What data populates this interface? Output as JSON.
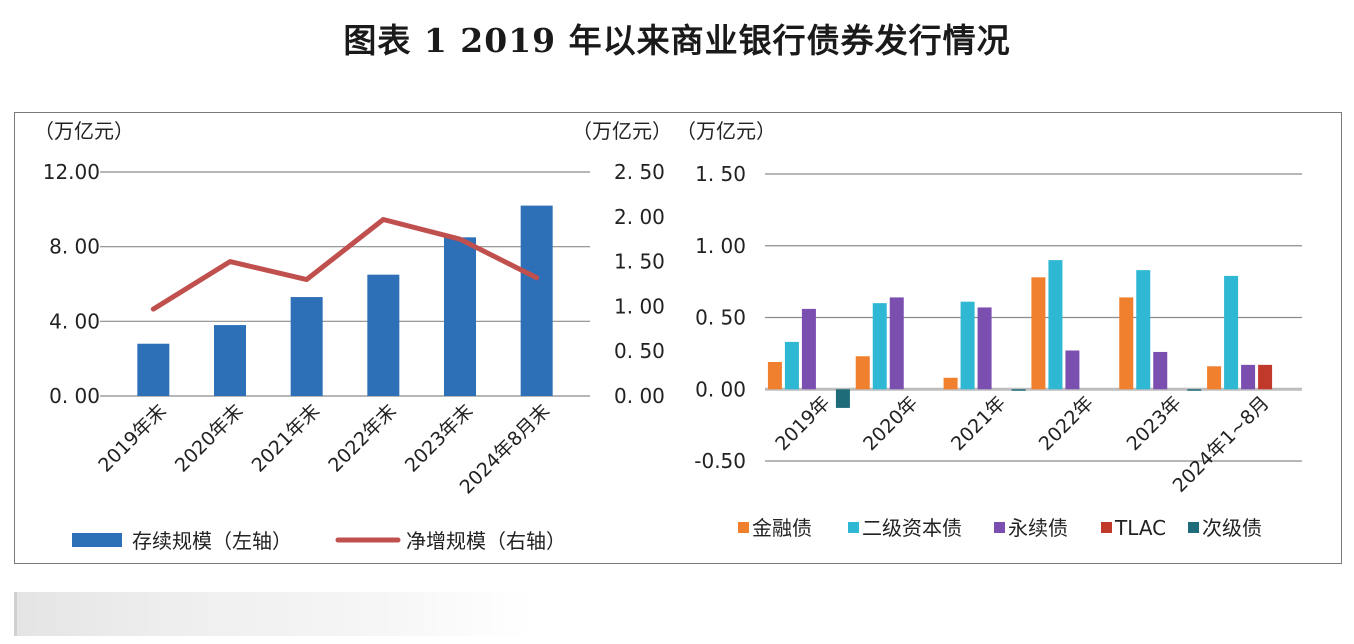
{
  "title": "图表 1  2019 年以来商业银行债券发行情况",
  "chart_data": [
    {
      "type": "bar+line",
      "title": "",
      "left_unit": "（万亿元）",
      "right_unit": "（万亿元）",
      "categories": [
        "2019年末",
        "2020年末",
        "2021年末",
        "2022年末",
        "2023年末",
        "2024年8月末"
      ],
      "left_ticks": [
        "0. 00",
        "4. 00",
        "8. 00",
        "12.00"
      ],
      "right_ticks": [
        "0. 00",
        "0. 50",
        "1. 00",
        "1. 50",
        "2. 00",
        "2. 50"
      ],
      "ylim_left": [
        0,
        12
      ],
      "ylim_right": [
        0,
        2.5
      ],
      "grid": true,
      "legend_position": "bottom",
      "series": [
        {
          "name": "存续规模（左轴）",
          "type": "bar",
          "axis": "left",
          "color": "#2e70b8",
          "values": [
            2.8,
            3.8,
            5.3,
            6.5,
            8.5,
            10.2
          ]
        },
        {
          "name": "净增规模（右轴）",
          "type": "line",
          "axis": "right",
          "color": "#c0504d",
          "values": [
            0.97,
            1.5,
            1.3,
            1.97,
            1.75,
            1.32
          ]
        }
      ]
    },
    {
      "type": "bar",
      "title": "",
      "unit": "（万亿元）",
      "categories": [
        "2019年",
        "2020年",
        "2021年",
        "2022年",
        "2023年",
        "2024年1~8月"
      ],
      "y_ticks": [
        "-0.50",
        "0. 00",
        "0. 50",
        "1. 00",
        "1. 50"
      ],
      "ylim": [
        -0.5,
        1.5
      ],
      "grid": true,
      "legend_position": "bottom",
      "series": [
        {
          "name": "金融债",
          "color": "#f07f2e",
          "values": [
            0.19,
            0.23,
            0.08,
            0.78,
            0.64,
            0.16
          ]
        },
        {
          "name": "二级资本债",
          "color": "#2fb8d3",
          "values": [
            0.33,
            0.6,
            0.61,
            0.9,
            0.83,
            0.79
          ]
        },
        {
          "name": "永续债",
          "color": "#7a4fb0",
          "values": [
            0.56,
            0.64,
            0.57,
            0.27,
            0.26,
            0.17
          ]
        },
        {
          "name": "TLAC",
          "color": "#c0392b",
          "values": [
            0,
            0,
            0,
            0,
            0,
            0.17
          ]
        },
        {
          "name": "次级债",
          "color": "#1e6b7a",
          "values": [
            -0.13,
            0,
            -0.01,
            0,
            -0.01,
            0
          ]
        }
      ]
    }
  ]
}
